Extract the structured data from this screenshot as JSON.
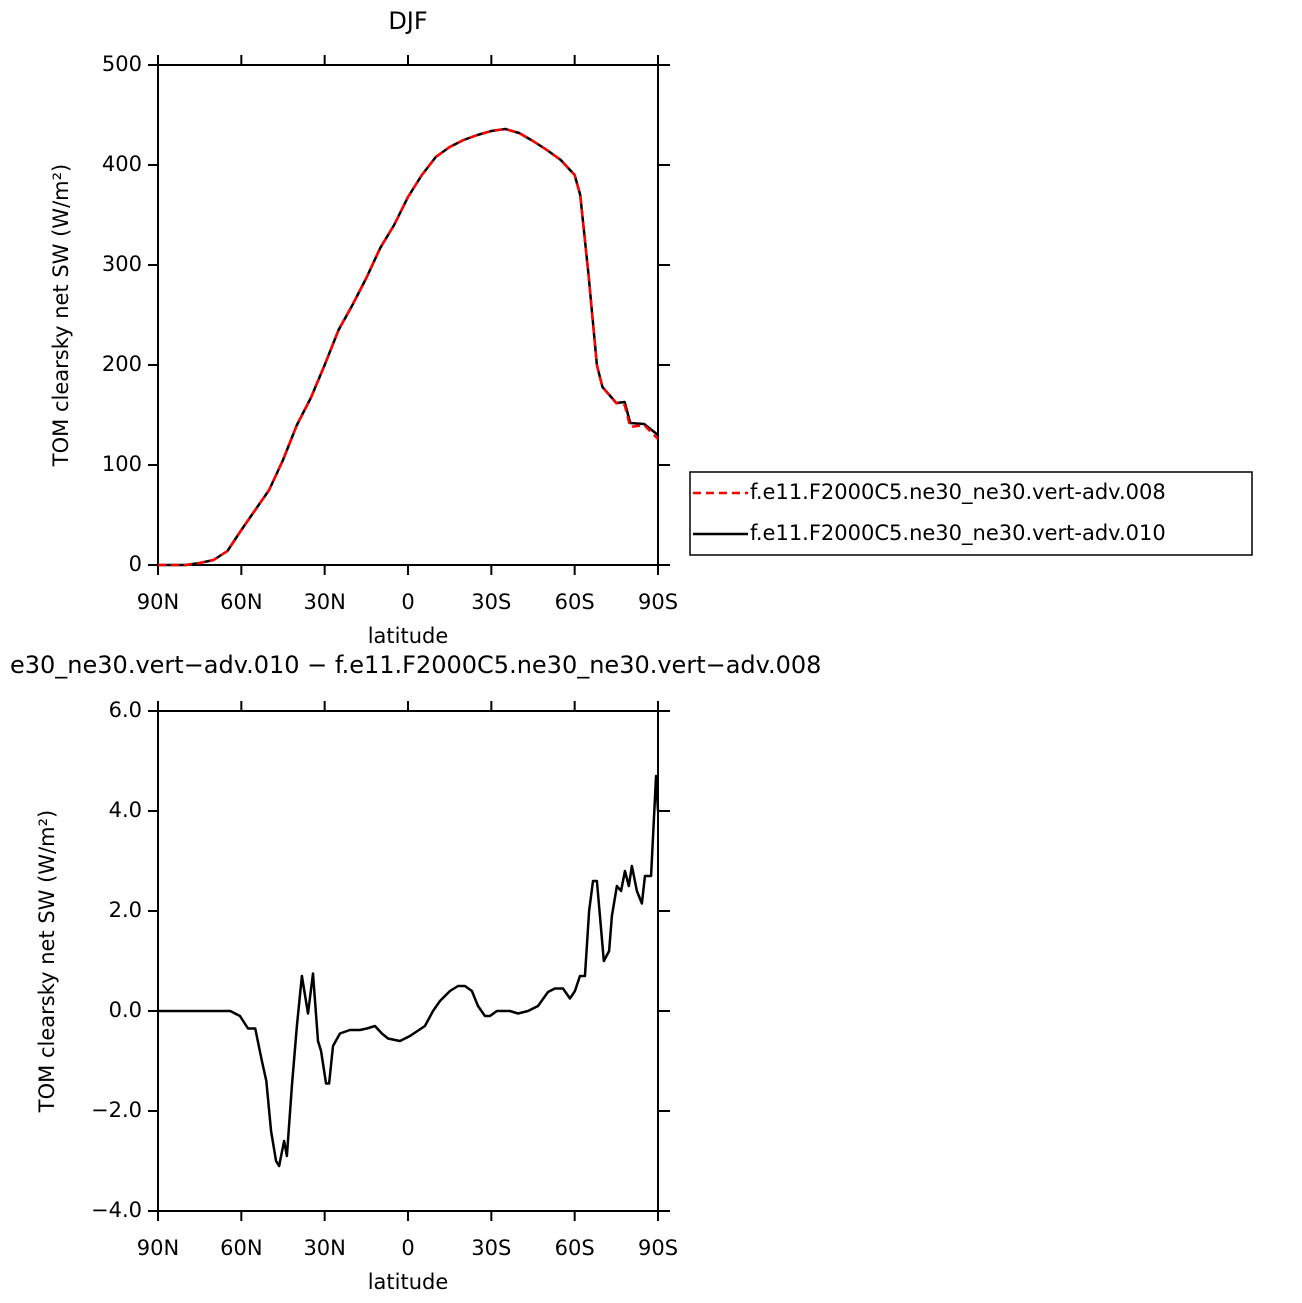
{
  "chart_data": [
    {
      "type": "line",
      "title": "DJF",
      "xlabel": "latitude",
      "ylabel": "TOM clearsky net SW (W/m²)",
      "x": [
        90,
        85,
        80,
        75,
        70,
        65,
        60,
        55,
        50,
        45,
        40,
        35,
        30,
        25,
        20,
        15,
        10,
        5,
        0,
        -5,
        -10,
        -15,
        -20,
        -25,
        -30,
        -35,
        -40,
        -45,
        -50,
        -55,
        -60,
        -62,
        -65,
        -68,
        -70,
        -75,
        -78,
        -80,
        -85,
        -90
      ],
      "series": [
        {
          "name": "f.e11.F2000C5.ne30_ne30.vert-adv.008",
          "color": "#ff0000",
          "dash": true,
          "values": [
            0,
            0,
            0,
            2,
            5,
            14,
            35,
            55,
            75,
            105,
            140,
            167,
            200,
            235,
            260,
            287,
            317,
            340,
            368,
            390,
            408,
            418,
            425,
            430,
            434,
            436,
            432,
            424,
            415,
            405,
            390,
            370,
            290,
            200,
            178,
            162,
            160,
            138,
            140,
            126
          ]
        },
        {
          "name": "f.e11.F2000C5.ne30_ne30.vert-adv.010",
          "color": "#000000",
          "dash": false,
          "values": [
            0,
            0,
            0,
            2,
            5,
            14,
            35,
            55,
            75,
            105,
            140,
            167,
            200,
            235,
            260,
            287,
            317,
            340,
            368,
            390,
            408,
            418,
            425,
            430,
            434,
            436,
            432,
            424,
            415,
            405,
            390,
            370,
            290,
            200,
            178,
            162,
            163,
            142,
            141,
            130
          ]
        }
      ],
      "xlim": [
        90,
        -90
      ],
      "xticks": [
        {
          "value": 90,
          "label": "90N"
        },
        {
          "value": 60,
          "label": "60N"
        },
        {
          "value": 30,
          "label": "30N"
        },
        0,
        {
          "value": -30,
          "label": "30S"
        },
        {
          "value": -60,
          "label": "60S"
        },
        {
          "value": -90,
          "label": "90S"
        }
      ],
      "ylim": [
        0,
        500
      ],
      "yticks": [
        0,
        100,
        200,
        300,
        400,
        500
      ],
      "legend": "right"
    },
    {
      "type": "line",
      "title": "e30_ne30.vert−adv.010 − f.e11.F2000C5.ne30_ne30.vert−adv.008",
      "xlabel": "latitude",
      "ylabel": "TOM clearsky net SW (W/m²)",
      "x": [
        90,
        69.5,
        64,
        60.5,
        57.6,
        55,
        52.6,
        51,
        49.3,
        47.5,
        46.4,
        44.6,
        43.6,
        41.8,
        40,
        38.2,
        36,
        34.2,
        32.4,
        31.3,
        29.5,
        28.4,
        27,
        24.5,
        20.9,
        17.3,
        14.8,
        11.9,
        9.4,
        7.2,
        2.9,
        -0.7,
        -6.1,
        -9,
        -11.5,
        -15.1,
        -18,
        -20.5,
        -23,
        -25.2,
        -27.7,
        -29.5,
        -32,
        -36.7,
        -39.6,
        -43.2,
        -46.8,
        -50.4,
        -52.9,
        -55.8,
        -58.3,
        -60.1,
        -61.9,
        -63.7,
        -65.2,
        -66.6,
        -68,
        -69.1,
        -70.5,
        -72.4,
        -73.4,
        -75.2,
        -76.7,
        -78.1,
        -79.5,
        -80.6,
        -82.4,
        -84.2,
        -85.3,
        -87.5,
        -89.3,
        -90
      ],
      "values": [
        0,
        0,
        0,
        -0.1,
        -0.35,
        -0.35,
        -1.0,
        -1.4,
        -2.4,
        -3.0,
        -3.1,
        -2.6,
        -2.9,
        -1.5,
        -0.3,
        0.7,
        -0.05,
        0.75,
        -0.6,
        -0.8,
        -1.45,
        -1.45,
        -0.7,
        -0.45,
        -0.38,
        -0.38,
        -0.35,
        -0.3,
        -0.45,
        -0.55,
        -0.6,
        -0.5,
        -0.3,
        0.0,
        0.2,
        0.4,
        0.5,
        0.5,
        0.4,
        0.1,
        -0.1,
        -0.1,
        0.0,
        0.0,
        -0.05,
        0.0,
        0.1,
        0.38,
        0.45,
        0.45,
        0.25,
        0.4,
        0.7,
        0.7,
        2.0,
        2.6,
        2.6,
        1.9,
        1.0,
        1.2,
        1.9,
        2.5,
        2.4,
        2.8,
        2.5,
        2.9,
        2.4,
        2.15,
        2.7,
        2.7,
        4.7,
        4.0
      ],
      "color": "#000000",
      "xlim": [
        90,
        -90
      ],
      "xticks": [
        {
          "value": 90,
          "label": "90N"
        },
        {
          "value": 60,
          "label": "60N"
        },
        {
          "value": 30,
          "label": "30N"
        },
        0,
        {
          "value": -30,
          "label": "30S"
        },
        {
          "value": -60,
          "label": "60S"
        },
        {
          "value": -90,
          "label": "90S"
        }
      ],
      "ylim": [
        -4,
        6
      ],
      "yticks": [
        {
          "value": -4,
          "label": "−4.0"
        },
        {
          "value": -2,
          "label": "−2.0"
        },
        {
          "value": 0,
          "label": "0.0"
        },
        {
          "value": 2,
          "label": "2.0"
        },
        {
          "value": 4,
          "label": "4.0"
        },
        {
          "value": 6,
          "label": "6.0"
        }
      ]
    }
  ]
}
